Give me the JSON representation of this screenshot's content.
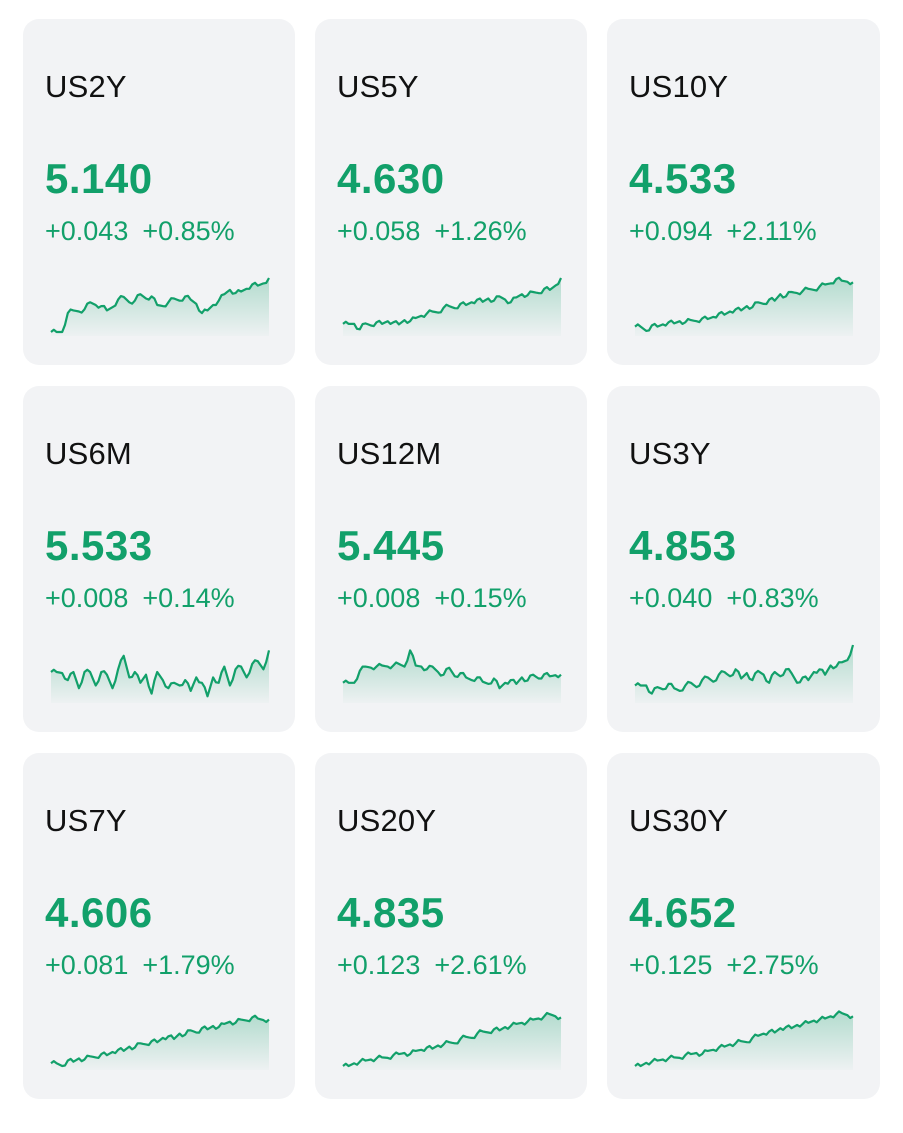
{
  "colors": {
    "card_bg": "#f2f3f5",
    "symbol_text": "#111111",
    "positive": "#12a06a"
  },
  "cards": [
    {
      "symbol": "US2Y",
      "price": "5.140",
      "change": "+0.043",
      "change_pct": "+0.85%",
      "sparkline": {
        "icon": "sparkline-chart",
        "trend": [
          0.0,
          0.0,
          0.0,
          0.35,
          0.4,
          0.38,
          0.42,
          0.55,
          0.5,
          0.48,
          0.4,
          0.46,
          0.6,
          0.65,
          0.55,
          0.58,
          0.7,
          0.62,
          0.66,
          0.5,
          0.48,
          0.55,
          0.62,
          0.58,
          0.66,
          0.6,
          0.52,
          0.35,
          0.4,
          0.5,
          0.58,
          0.7,
          0.78,
          0.72,
          0.75,
          0.8,
          0.88,
          0.86,
          0.9,
          1.0
        ]
      }
    },
    {
      "symbol": "US5Y",
      "price": "4.630",
      "change": "+0.058",
      "change_pct": "+1.26%",
      "sparkline": {
        "icon": "sparkline-chart",
        "trend": [
          0.15,
          0.15,
          0.15,
          0.05,
          0.16,
          0.12,
          0.18,
          0.15,
          0.2,
          0.18,
          0.14,
          0.22,
          0.2,
          0.26,
          0.3,
          0.34,
          0.38,
          0.36,
          0.45,
          0.48,
          0.44,
          0.52,
          0.5,
          0.55,
          0.6,
          0.56,
          0.62,
          0.58,
          0.66,
          0.6,
          0.55,
          0.64,
          0.7,
          0.68,
          0.74,
          0.72,
          0.8,
          0.78,
          0.86,
          1.0
        ]
      }
    },
    {
      "symbol": "US10Y",
      "price": "4.533",
      "change": "+0.094",
      "change_pct": "+2.11%",
      "sparkline": {
        "icon": "sparkline-chart",
        "trend": [
          0.1,
          0.1,
          0.02,
          0.12,
          0.1,
          0.14,
          0.18,
          0.16,
          0.2,
          0.18,
          0.22,
          0.2,
          0.25,
          0.24,
          0.28,
          0.34,
          0.32,
          0.38,
          0.42,
          0.4,
          0.48,
          0.46,
          0.55,
          0.52,
          0.6,
          0.58,
          0.7,
          0.66,
          0.74,
          0.72,
          0.76,
          0.8,
          0.78,
          0.84,
          0.88,
          0.9,
          0.98,
          0.95,
          0.93,
          0.92
        ]
      }
    },
    {
      "symbol": "US6M",
      "price": "5.533",
      "change": "+0.008",
      "change_pct": "+0.14%",
      "sparkline": {
        "icon": "sparkline-chart",
        "trend": [
          0.5,
          0.5,
          0.48,
          0.35,
          0.5,
          0.2,
          0.5,
          0.5,
          0.25,
          0.5,
          0.45,
          0.2,
          0.55,
          0.8,
          0.4,
          0.5,
          0.3,
          0.45,
          0.1,
          0.5,
          0.35,
          0.2,
          0.3,
          0.25,
          0.35,
          0.15,
          0.4,
          0.3,
          0.05,
          0.4,
          0.3,
          0.6,
          0.25,
          0.55,
          0.6,
          0.4,
          0.65,
          0.7,
          0.55,
          0.9
        ]
      }
    },
    {
      "symbol": "US12M",
      "price": "5.445",
      "change": "+0.008",
      "change_pct": "+0.15%",
      "sparkline": {
        "icon": "sparkline-chart",
        "trend": [
          0.3,
          0.3,
          0.3,
          0.52,
          0.6,
          0.58,
          0.6,
          0.62,
          0.6,
          0.62,
          0.65,
          0.6,
          0.9,
          0.62,
          0.6,
          0.55,
          0.6,
          0.5,
          0.45,
          0.58,
          0.42,
          0.48,
          0.4,
          0.35,
          0.4,
          0.32,
          0.28,
          0.38,
          0.2,
          0.3,
          0.35,
          0.28,
          0.4,
          0.34,
          0.45,
          0.38,
          0.46,
          0.42,
          0.44,
          0.45
        ]
      }
    },
    {
      "symbol": "US3Y",
      "price": "4.853",
      "change": "+0.040",
      "change_pct": "+0.83%",
      "sparkline": {
        "icon": "sparkline-chart",
        "trend": [
          0.25,
          0.25,
          0.25,
          0.1,
          0.22,
          0.18,
          0.28,
          0.2,
          0.15,
          0.25,
          0.3,
          0.22,
          0.35,
          0.4,
          0.32,
          0.45,
          0.5,
          0.42,
          0.55,
          0.38,
          0.48,
          0.35,
          0.52,
          0.45,
          0.3,
          0.5,
          0.42,
          0.55,
          0.48,
          0.3,
          0.4,
          0.35,
          0.5,
          0.55,
          0.45,
          0.62,
          0.6,
          0.68,
          0.72,
          1.0
        ]
      }
    },
    {
      "symbol": "US7Y",
      "price": "4.606",
      "change": "+0.081",
      "change_pct": "+1.79%",
      "sparkline": {
        "icon": "sparkline-chart",
        "trend": [
          0.05,
          0.05,
          0.0,
          0.1,
          0.08,
          0.14,
          0.12,
          0.18,
          0.16,
          0.22,
          0.2,
          0.26,
          0.3,
          0.28,
          0.36,
          0.34,
          0.42,
          0.4,
          0.46,
          0.44,
          0.52,
          0.55,
          0.5,
          0.6,
          0.58,
          0.66,
          0.62,
          0.7,
          0.68,
          0.74,
          0.72,
          0.78,
          0.82,
          0.8,
          0.86,
          0.84,
          0.9,
          0.88,
          0.85,
          0.86
        ]
      }
    },
    {
      "symbol": "US20Y",
      "price": "4.835",
      "change": "+0.123",
      "change_pct": "+2.61%",
      "sparkline": {
        "icon": "sparkline-chart",
        "trend": [
          0.0,
          0.0,
          0.05,
          0.08,
          0.1,
          0.12,
          0.14,
          0.16,
          0.15,
          0.2,
          0.22,
          0.24,
          0.22,
          0.28,
          0.3,
          0.34,
          0.32,
          0.38,
          0.4,
          0.44,
          0.42,
          0.5,
          0.54,
          0.52,
          0.6,
          0.64,
          0.62,
          0.68,
          0.66,
          0.72,
          0.74,
          0.78,
          0.8,
          0.82,
          0.86,
          0.88,
          0.92,
          0.96,
          0.92,
          0.9
        ]
      }
    },
    {
      "symbol": "US30Y",
      "price": "4.652",
      "change": "+0.125",
      "change_pct": "+2.75%",
      "sparkline": {
        "icon": "sparkline-chart",
        "trend": [
          0.0,
          0.0,
          0.06,
          0.08,
          0.1,
          0.12,
          0.14,
          0.16,
          0.15,
          0.2,
          0.22,
          0.24,
          0.22,
          0.28,
          0.3,
          0.34,
          0.36,
          0.4,
          0.42,
          0.46,
          0.44,
          0.52,
          0.56,
          0.6,
          0.64,
          0.62,
          0.7,
          0.72,
          0.7,
          0.76,
          0.78,
          0.8,
          0.84,
          0.86,
          0.88,
          0.92,
          0.96,
          0.98,
          0.94,
          0.92
        ]
      }
    }
  ]
}
